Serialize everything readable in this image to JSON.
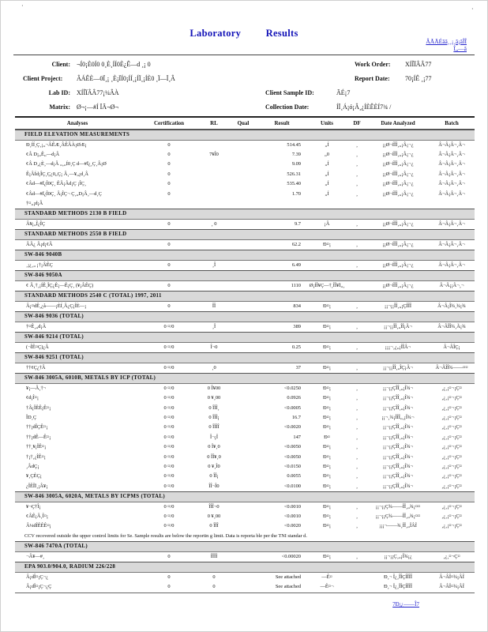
{
  "colors": {
    "accent_blue": "#1414b8",
    "link_blue": "#2323cc",
    "section_bar": "#d9d9d9"
  },
  "page": {
    "title": "Laboratory Results",
    "top_left_mark": "·",
    "top_right_mark": "·",
    "top_right_link_line1": "ÂÃÃÉãã¸¸¡¸ã¡ãÎÎ",
    "top_right_link_line2": "Î„―ã",
    "footer_link": "7Ð¡¿――Î7"
  },
  "header": {
    "client_label": "Client:",
    "client_value": "¬Í0¡È0Í0 0¸È¸ÍÍ0È¿Ê―d ¸¡ 0",
    "work_order_label": "Work Order:",
    "work_order_value": "XÍÎÏÂÂ77",
    "client_project_label": "Client Project:",
    "client_project_value": "ÂÁÊÈ―0Ï¸¡ ¸È¡ÏÍ0¡ÍÍ¸¡ÍÏ¸¡ÍÈ0 ¸Ï―Ï¸Â",
    "report_date_label": "Report Date:",
    "report_date_value": "70¡ÍÊ ¸¡77",
    "lab_id_label": "Lab ID:",
    "lab_id_value": "XÍÎÏÂÂ77¡¼ÂÀ",
    "client_sample_id_label": "Client Sample ID:",
    "client_sample_id_value": "ÃÉ¡7",
    "matrix_label": "Matrix:",
    "matrix_value": "Ø¬¡―#Í ÏÃ¬Ø¬",
    "collection_date_label": "Collection Date:",
    "collection_date_value": "ÍÏ¸Á¡ó¡Â¸¿ÍÈÊÈÍ7¾ /"
  },
  "table": {
    "columns": [
      "Analyses",
      "Certification",
      "RL",
      "Qual",
      "Result",
      "Units",
      "DF",
      "Date Analyzed",
      "Batch"
    ],
    "sections": [
      {
        "header": "FIELD ELEVATION MEASUREMENTS",
        "rows": [
          {
            "analyses": "Ð¸ÍÍ¸Ç¸¡„¬ÂÊÆ¸ÂÊÂÀ¡ØÆ¡",
            "cert": "0",
            "rl": "",
            "qual": "",
            "result": "514.45",
            "units": "„Í",
            "df": "¸",
            "date": "¡¡Ø¬ÍÎÎ¸„¡Â¡¬¿",
            "batch": "Â¬Â¡Â¬¸Â¬"
          },
          {
            "analyses": "¢Â D¡„Ê„―d¡Â",
            "cert": "0",
            "rl": "7¥Î0",
            "qual": "",
            "result": "7.39",
            "units": "„0",
            "df": "¸",
            "date": "¡¡Ø¬ÍÎÎ¸„¡Â¡¬¿",
            "batch": "Â¬Â¡Â¬¸Â¬"
          },
          {
            "analyses": "¢Â D¸¿È¸―d¡Â „¸„Í0¸Ç d―#Ï¿¸Ç¸Â¡Ø",
            "cert": "0",
            "rl": "",
            "qual": "",
            "result": "9.09",
            "units": "„Í",
            "df": "¸",
            "date": "¡¡Ø¬ÍÎÎ¸„¡Â¡¬¿",
            "batch": "Â¬Â¡Â¬¸Â¬"
          },
          {
            "analyses": "Ê¡ÂÍd¡ÎÇ¸Ç¿0„Ç¡ Â¸―¥„¡d¸Â",
            "cert": "0",
            "rl": "",
            "qual": "",
            "result": "526.31",
            "units": "„Í",
            "df": "¸",
            "date": "¡¡Ø¬ÍÎÎ¸„¡Â¡¬¿",
            "batch": "Â¬Â¡Â¬¸Â¬"
          },
          {
            "analyses": "¢Âd―#Ï¿Î0Ç¸ ÊÂ¡Âd¡Ç ¡ÎÇ¸",
            "cert": "0",
            "rl": "",
            "qual": "",
            "result": "535.40",
            "units": "„Í",
            "df": "¸",
            "date": "¡¡Ø¬ÍÎÎ¸„¡Â¡¬¿",
            "batch": "Â¬Â¡Â¬¸Â¬"
          },
          {
            "analyses": "¢Âd―#Ï¿Î0Ç¸ Â¡ÎÇ¬ Ç¸„D¡Â¸―d¸Ç",
            "cert": "0",
            "rl": "",
            "qual": "",
            "result": "1.70",
            "units": "„Í",
            "df": "¸",
            "date": "¡¡Ø¬ÍÎÎ¸„¡Â¡¬¿",
            "batch": "Â¬Â¡Â¬¸Â¬"
          },
          {
            "analyses": "†¤„¡d¡Â",
            "cert": "",
            "rl": "",
            "qual": "",
            "result": "",
            "units": "",
            "df": "",
            "date": "",
            "batch": ""
          }
        ]
      },
      {
        "header": "STANDARD METHODS 2130 B FIELD",
        "rows": [
          {
            "analyses": "Â¥¡„Î¿ÎÇ",
            "cert": "0",
            "rl": "¸ 0",
            "qual": "",
            "result": "9.7",
            "units": "¡Â",
            "df": "¸",
            "date": "¡¡Ø¬ÍÎÎ¸„¡Â¡¬¿",
            "batch": "Â¬Â¡Â¬¸Â¬"
          }
        ]
      },
      {
        "header": "STANDARD METHODS 2550 B FIELD",
        "rows": [
          {
            "analyses": "ÂÂ¿ Â¡d¡¢Â",
            "cert": "0",
            "rl": "",
            "qual": "",
            "result": "62.2",
            "units": "Ð¤¡",
            "df": "¸",
            "date": "¡¡Ø¬ÍÎÎ¸„¡Â¡¬¿",
            "batch": "Â¬Â¡Â¬¸Â¬"
          }
        ]
      },
      {
        "header": "SW-846 9040B",
        "rows": [
          {
            "analyses": "¸¡¿¸„ ¡†¡ÂÊÇ",
            "cert": "0",
            "rl": "¸Î",
            "qual": "",
            "result": "6.49",
            "units": "",
            "df": "¸",
            "date": "¡¡Ø¬ÍÎÎ¸„¡Â¡¬¿",
            "batch": "Â¬Â¡Â¬¸Â¬"
          }
        ]
      },
      {
        "header": "SW-846 9050A",
        "rows": [
          {
            "analyses": "¢ Â¸†¸¡ÍÊ¸ÎÇ¿Ê¡―Ê¡Ç¸ (¥¡ÂÊÇ)",
            "cert": "0",
            "rl": "",
            "qual": "",
            "result": "1110",
            "units": "Ø¡ÍÎ¥Ç―†¸ÎÎ¥Ï„¸",
            "df": "",
            "date": "¡¡Ø¬ÍÎÎ¸„¡Â¡¬¿",
            "batch": "Â¬Â¡¡Â¬¸¬"
          }
        ]
      },
      {
        "header": "STANDARD METHODS 2540 C (TOTAL) 1997, 2011",
        "rows": [
          {
            "analyses": "Â¡¤dÊ¸¿å――¡ÈÍ¸Â¿Ç¡ÎÈ―¡",
            "cert": "0",
            "rl": "ÎÎ",
            "qual": "",
            "result": "834",
            "units": "Ð¤¡",
            "df": "¸",
            "date": "¡¡¬¡¡ÎÎ¸„¡ÇÎÎÎ",
            "batch": "Â¬Â¡Î¾¸¾¡¾"
          }
        ]
      },
      {
        "header": "SW-846 9036 (TOTAL)",
        "rows": [
          {
            "analyses": "†¤Ê¸„d¡Â",
            "cert": "0 ¤/0",
            "rl": "¸Î",
            "qual": "",
            "result": "389",
            "units": "Ð¤¡",
            "df": "¸",
            "date": "¡¡¬¡¡ÎÎ¸„ÎÎ¡Â¬",
            "batch": "Â¬ÂÎÎ¾¸Ã¡¾"
          }
        ]
      },
      {
        "header": "SW-846 9214 (TOTAL)",
        "rows": [
          {
            "analyses": "(¬ÎÊ¤Ç)¿Â",
            "cert": "0 ¤/0",
            "rl": "Î¬0",
            "qual": "",
            "result": "0.25",
            "units": "Ð¤¡",
            "df": "¸",
            "date": "¡¡¡¬¸¿„¡ÎÎÂ¬",
            "batch": "Â¬ÂÎÇ¡"
          }
        ]
      },
      {
        "header": "SW-846 9251 (TOTAL)",
        "rows": [
          {
            "analyses": "††¢Ç¿†Â",
            "cert": "0 ¤/0",
            "rl": "¸0",
            "qual": "",
            "result": "37",
            "units": "Ð¤¡",
            "df": "¸",
            "date": "¡¡¬¡¡ÎÎ¸„ÎÇ¡Â¬",
            "batch": "Â¬ÂÎÎ¾――¤¤"
          }
        ]
      },
      {
        "header": "SW-846 3005A, 6010B, METALS BY ICP (TOTAL)",
        "rows": [
          {
            "analyses": "¥¡―Â¸†¬",
            "cert": "0 ¤/0",
            "rl": "0 Î¥00",
            "qual": "",
            "result": "<0.0250",
            "units": "Ð¤¡",
            "df": "¸",
            "date": "¡¡¬¡¡ÇÎÎ¸„¡Î¾¬",
            "batch": "¸¿¸¡¤¬¡Ç¤"
          },
          {
            "analyses": "¢d¡Î¤¡",
            "cert": "0 ¤/0",
            "rl": "0 ¥¸00",
            "qual": "",
            "result": "0.0926",
            "units": "Ð¤¡",
            "df": "¸",
            "date": "¡¡¬¡¡ÇÎÎ¸„¡Î¾¬",
            "batch": "¸¿¸¡¤¬¡Ç¤"
          },
          {
            "analyses": "†Â¡ÎÊÊ¡Ê¤¡",
            "cert": "0 ¤/0",
            "rl": "0 ÎÎÎ¸",
            "qual": "",
            "result": "<0.0005",
            "units": "Ð¤¡",
            "df": "¸",
            "date": "¡¡¬¡¡ÇÎÎ¸„¡Î¾¬",
            "batch": "¸¿¸¡¤¬¡Ç¤"
          },
          {
            "analyses": "ÎD¸Ç",
            "cert": "0 ¤/0",
            "rl": "0 ÎÎÎ¡",
            "qual": "",
            "result": "16.7",
            "units": "Ð¤¡",
            "df": "¸",
            "date": "¡¡¬¸¾¡ÎÎÎ„¸¡Î¾¬",
            "batch": "¸¿¸¡¤¬¡Ç¤"
          },
          {
            "analyses": "††¡dÎÇÊ¤¡",
            "cert": "0 ¤/0",
            "rl": "0 ÎÎÎÎ",
            "qual": "",
            "result": "<0.0020",
            "units": "Ð¤¡",
            "df": "¸",
            "date": "¡¡¬¡¡ÇÎÎ¸„¡Î¾¬",
            "batch": "¸¿¸¡¤¬¡Ç¤"
          },
          {
            "analyses": "††¡dÊ―Ê¤¡",
            "cert": "0 ¤/0",
            "rl": "Î¬¡Î",
            "qual": "",
            "result": "147",
            "units": "Ð¤",
            "df": "¸",
            "date": "¡¡¬¡¡ÇÎÎ¸„¡Î¾¬",
            "batch": "¸¿¸¡¤¬¡Ç¤"
          },
          {
            "analyses": "††¸¥¡ÎÊ¤¡",
            "cert": "0 ¤/0",
            "rl": "0 Î¥¸0",
            "qual": "",
            "result": "<0.0050",
            "units": "Ð¤¡",
            "df": "¸",
            "date": "¡¡¬¡¡ÇÎÎ¸„¡Î¾¬",
            "batch": "¸¿¸¡¤¬¡Ç¤"
          },
          {
            "analyses": "†¡†¸¿ÎÊ¤¡",
            "cert": "0 ¤/0",
            "rl": "0 ÎÎ¥¸0",
            "qual": "",
            "result": "<0.0050",
            "units": "Ð¤¡",
            "df": "¸",
            "date": "¡¡¬¡¡ÇÎÎ¸„¡Î¾¬",
            "batch": "¸¿¸¡¤¬¡Ç¤"
          },
          {
            "analyses": "¸ÂdÇ¡",
            "cert": "0 ¤/0",
            "rl": "0 ¥¸Î0",
            "qual": "",
            "result": "<0.0150",
            "units": "Ð¤¡",
            "df": "¸",
            "date": "¡¡¬¡¡ÇÎÎ¸„¡Î¾¬",
            "batch": "¸¿¸¡¤¬¡Ç¤"
          },
          {
            "analyses": "¥¸ÇÈÇ¡",
            "cert": "0 ¤/0",
            "rl": "0 ÎÎ¡",
            "qual": "",
            "result": "0.0055",
            "units": "Ð¤¡",
            "df": "¸",
            "date": "¡¡¬¡¡ÇÎÎ¸„¡Î¾¬",
            "batch": "¸¿¸¡¤¬¡Ç¤"
          },
          {
            "analyses": "¿ÎÊÎÏ¸¡Â¥¡",
            "cert": "0 ¤/0",
            "rl": "ÎÎ¬Î0",
            "qual": "",
            "result": "<0.0100",
            "units": "Ð¤¡",
            "df": "¸",
            "date": "¡¡¬¡¡ÇÎÎ¸„¡Î¾¬",
            "batch": "¸¿¸¡¤¬¡Ç¤"
          }
        ]
      },
      {
        "header": "SW-846 3005A, 6020A, METALS BY ICPMS (TOTAL)",
        "rows": [
          {
            "analyses": "¥¬Ç†Î¡",
            "cert": "0 ¤/0",
            "rl": "ÎÎÎ¬0",
            "qual": "",
            "result": "<0.0010",
            "units": "Ð¤¡",
            "df": "¸",
            "date": "¡¡¬¡¡Ç¾――ÎÎ¸„¾¡¤¤",
            "batch": "¸¿¸¡¤¬¡Ç¤"
          },
          {
            "analyses": "¢ÂÊ¡Â¸Î¤¡",
            "cert": "0 ¤/0",
            "rl": "0 ¥¸00",
            "qual": "",
            "result": "<0.0010",
            "units": "Ð¤¡",
            "df": "¸",
            "date": "¡¡¬¡¡Ç¾――ÎÎ¸„¾¡¤¤",
            "batch": "¸¿¸¡¤¬¡Ç¤"
          },
          {
            "analyses": "Â¼dÎÊÊÊ¤¡",
            "cert": "0 ¤/0",
            "rl": "0 ÎÎÎ",
            "qual": "",
            "result": "<0.0020",
            "units": "Ð¤¡",
            "df": "¸",
            "date": "¡¡¡¬――¾¸ÎÎ¸„ÎÂÎ",
            "batch": "¸¿¸¡¤¬¡Ç¤"
          },
          {
            "note": "CCV recovered outside the upper control limits for Se. Sample results are below the reportin g limit. Data is reporta ble per the TNI standar d."
          }
        ]
      },
      {
        "header": "SW-846 7470A (TOTAL)",
        "rows": [
          {
            "analyses": "¬Â¥―#¸",
            "cert": "0",
            "rl": "ÎÎÎÎ",
            "qual": "",
            "result": "<0.00020",
            "units": "Ð¤¡",
            "df": "¸",
            "date": "¡¡¬¡¡Ç¸„¡Î¾¡¿",
            "batch": "¸¿¸¤¬Ç¤"
          }
        ]
      },
      {
        "header": "EPA 903.0/904.0, RADIUM 226/228",
        "rows": [
          {
            "analyses": "Â¡dÎ¤¡Ç¬¿",
            "cert": "0",
            "rl": "0",
            "qual": "",
            "result": "See attached",
            "units": "―Ê¤",
            "df": "",
            "date": "Ð¸¬ Î¿¸ÎÎÇÎÎÎÎ",
            "batch": "Â¬ÂÎ¤¾¡ÂÎ"
          },
          {
            "analyses": "Â¡dÎ¤¡Ç¬¿Ç",
            "cert": "0",
            "rl": "0",
            "qual": "",
            "result": "See attached",
            "units": "―Ê¤¬",
            "df": "",
            "date": "Ð¸¬ Î¿¸ÎÎÇÎÎÎÎ",
            "batch": "Â¬ÂÎ¤¾¡ÂÎ"
          }
        ]
      }
    ]
  }
}
